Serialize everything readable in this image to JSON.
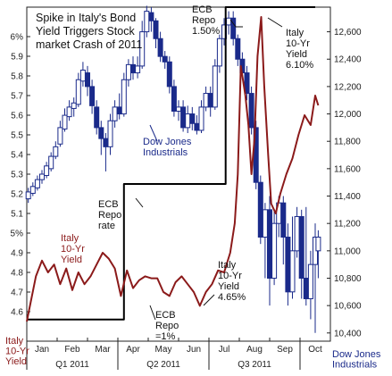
{
  "chart_data": {
    "type": "line",
    "title": "Spike in Italy's Bond Yield Triggers Stock market Crash of 2011",
    "left_axis": {
      "label": "Italy 10-Yr Yield",
      "ylim": [
        4.45,
        6.15
      ],
      "ticks": [
        "4.6",
        "4.7",
        "4.8",
        "4.9",
        "5%",
        "5.1",
        "5.2",
        "5.3",
        "5.4",
        "5.5",
        "5.6",
        "5.7",
        "5.8",
        "5.9",
        "6%"
      ]
    },
    "right_axis": {
      "label": "Dow Jones Industrials",
      "ylim": [
        10340,
        12780
      ],
      "ticks": [
        "10,400",
        "10,600",
        "10,800",
        "11,000",
        "11,200",
        "11,400",
        "11,600",
        "11,800",
        "12,000",
        "12,200",
        "12,400",
        "12,600"
      ]
    },
    "x_axis": {
      "months": [
        "Jan",
        "Feb",
        "Mar",
        "Apr",
        "May",
        "Jun",
        "Jul",
        "Aug",
        "Sep",
        "Oct"
      ],
      "quarters": [
        "Q1 2011",
        "Q2 2011",
        "Q3 2011"
      ]
    },
    "series": [
      {
        "name": "Italy 10-Yr Yield",
        "color": "#8b1a1a",
        "points": [
          [
            0.0,
            4.55
          ],
          [
            0.3,
            4.78
          ],
          [
            0.5,
            4.86
          ],
          [
            0.7,
            4.8
          ],
          [
            0.9,
            4.84
          ],
          [
            1.1,
            4.74
          ],
          [
            1.3,
            4.82
          ],
          [
            1.5,
            4.71
          ],
          [
            1.7,
            4.8
          ],
          [
            1.9,
            4.74
          ],
          [
            2.1,
            4.78
          ],
          [
            2.3,
            4.84
          ],
          [
            2.5,
            4.9
          ],
          [
            2.7,
            4.87
          ],
          [
            2.9,
            4.82
          ],
          [
            3.1,
            4.68
          ],
          [
            3.3,
            4.81
          ],
          [
            3.5,
            4.72
          ],
          [
            3.7,
            4.76
          ],
          [
            3.9,
            4.78
          ],
          [
            4.1,
            4.77
          ],
          [
            4.3,
            4.77
          ],
          [
            4.5,
            4.7
          ],
          [
            4.7,
            4.68
          ],
          [
            4.9,
            4.75
          ],
          [
            5.1,
            4.78
          ],
          [
            5.3,
            4.74
          ],
          [
            5.5,
            4.7
          ],
          [
            5.7,
            4.63
          ],
          [
            5.9,
            4.7
          ],
          [
            6.1,
            4.74
          ],
          [
            6.3,
            4.81
          ],
          [
            6.5,
            4.8
          ],
          [
            6.7,
            4.9
          ],
          [
            6.85,
            5.05
          ],
          [
            6.95,
            5.3
          ],
          [
            7.05,
            5.85
          ],
          [
            7.2,
            5.7
          ],
          [
            7.3,
            5.55
          ],
          [
            7.4,
            5.3
          ],
          [
            7.5,
            5.48
          ],
          [
            7.6,
            5.9
          ],
          [
            7.72,
            6.1
          ],
          [
            7.82,
            5.75
          ],
          [
            7.95,
            5.4
          ],
          [
            8.05,
            5.15
          ],
          [
            8.2,
            5.1
          ],
          [
            8.35,
            5.2
          ],
          [
            8.55,
            5.3
          ],
          [
            8.75,
            5.38
          ],
          [
            8.95,
            5.5
          ],
          [
            9.15,
            5.6
          ],
          [
            9.35,
            5.55
          ],
          [
            9.5,
            5.7
          ],
          [
            9.6,
            5.65
          ]
        ]
      },
      {
        "name": "ECB Repo rate",
        "color": "#000000",
        "points": [
          [
            0.0,
            4.56
          ],
          [
            3.2,
            4.56
          ],
          [
            3.2,
            5.25
          ],
          [
            6.55,
            5.25
          ],
          [
            6.55,
            6.15
          ],
          [
            9.5,
            6.15
          ]
        ]
      },
      {
        "name": "Dow Jones Industrials",
        "type": "candlestick",
        "color": "#1a2a8a",
        "candles": [
          [
            0.05,
            11380,
            11430,
            11350,
            11460
          ],
          [
            0.2,
            11420,
            11470,
            11400,
            11500
          ],
          [
            0.35,
            11460,
            11520,
            11440,
            11550
          ],
          [
            0.5,
            11520,
            11560,
            11490,
            11590
          ],
          [
            0.65,
            11550,
            11620,
            11530,
            11650
          ],
          [
            0.8,
            11600,
            11690,
            11580,
            11720
          ],
          [
            0.95,
            11690,
            11760,
            11670,
            11800
          ],
          [
            1.1,
            11780,
            11900,
            11760,
            11950
          ],
          [
            1.25,
            11890,
            11990,
            11870,
            12040
          ],
          [
            1.4,
            11980,
            12050,
            11950,
            12100
          ],
          [
            1.55,
            12040,
            12080,
            11980,
            12120
          ],
          [
            1.7,
            12070,
            12250,
            12050,
            12300
          ],
          [
            1.85,
            12240,
            12320,
            12200,
            12380
          ],
          [
            2.0,
            12300,
            12200,
            12130,
            12350
          ],
          [
            2.15,
            12200,
            12060,
            12000,
            12250
          ],
          [
            2.3,
            12050,
            11900,
            11850,
            12100
          ],
          [
            2.45,
            11900,
            11820,
            11700,
            11950
          ],
          [
            2.6,
            11820,
            11760,
            11580,
            11860
          ],
          [
            2.75,
            11760,
            11950,
            11700,
            12000
          ],
          [
            2.9,
            11950,
            12050,
            11900,
            12100
          ],
          [
            3.05,
            12050,
            12000,
            11960,
            12150
          ],
          [
            3.2,
            12000,
            12250,
            11980,
            12300
          ],
          [
            3.35,
            12250,
            12360,
            12200,
            12400
          ],
          [
            3.5,
            12360,
            12300,
            12250,
            12420
          ],
          [
            3.65,
            12300,
            12350,
            12260,
            12420
          ],
          [
            3.8,
            12350,
            12600,
            12330,
            12680
          ],
          [
            3.95,
            12600,
            12750,
            12560,
            12790
          ],
          [
            4.1,
            12740,
            12680,
            12600,
            12780
          ],
          [
            4.25,
            12680,
            12550,
            12480,
            12700
          ],
          [
            4.4,
            12550,
            12420,
            12380,
            12600
          ],
          [
            4.55,
            12420,
            12380,
            12330,
            12460
          ],
          [
            4.7,
            12380,
            12200,
            12150,
            12420
          ],
          [
            4.85,
            12200,
            12020,
            11980,
            12250
          ],
          [
            5.0,
            12020,
            12050,
            11950,
            12100
          ],
          [
            5.15,
            12050,
            11900,
            11870,
            12100
          ],
          [
            5.3,
            11900,
            12000,
            11860,
            12060
          ],
          [
            5.45,
            12000,
            11930,
            11880,
            12050
          ],
          [
            5.6,
            11930,
            11880,
            11850,
            11990
          ],
          [
            5.75,
            11880,
            12050,
            11860,
            12100
          ],
          [
            5.9,
            12050,
            12150,
            12020,
            12200
          ],
          [
            6.05,
            12150,
            12050,
            11980,
            12200
          ],
          [
            6.2,
            12050,
            12350,
            12030,
            12400
          ],
          [
            6.35,
            12350,
            12550,
            12300,
            12580
          ],
          [
            6.5,
            12550,
            12650,
            12500,
            12700
          ],
          [
            6.65,
            12650,
            12700,
            12580,
            12750
          ],
          [
            6.8,
            12700,
            12550,
            12500,
            12750
          ],
          [
            6.95,
            12550,
            12400,
            12350,
            12580
          ],
          [
            7.1,
            12400,
            12300,
            12250,
            12450
          ],
          [
            7.25,
            12300,
            12150,
            12100,
            12350
          ],
          [
            7.4,
            12150,
            11900,
            11850,
            12200
          ],
          [
            7.55,
            11900,
            11500,
            11450,
            11950
          ],
          [
            7.7,
            11500,
            11100,
            11050,
            11550
          ],
          [
            7.85,
            11100,
            11300,
            10800,
            11350
          ],
          [
            8.0,
            11300,
            10800,
            10600,
            11400
          ],
          [
            8.15,
            10800,
            11200,
            10750,
            11300
          ],
          [
            8.3,
            11200,
            11350,
            11100,
            11400
          ],
          [
            8.45,
            11350,
            11100,
            10900,
            11400
          ],
          [
            8.6,
            11100,
            10700,
            10600,
            11200
          ],
          [
            8.75,
            10700,
            11000,
            10650,
            11250
          ],
          [
            8.9,
            11000,
            11250,
            10950,
            11320
          ],
          [
            9.05,
            11250,
            10800,
            10650,
            11300
          ],
          [
            9.2,
            10800,
            10650,
            10600,
            11320
          ],
          [
            9.35,
            10650,
            10900,
            10500,
            11000
          ],
          [
            9.5,
            10900,
            11100,
            10400,
            11200
          ],
          [
            9.6,
            11000,
            11100,
            10800,
            11150
          ]
        ]
      }
    ],
    "annotations": [
      {
        "text": "ECB Repo 1.50%",
        "lines": [
          "ECB",
          "Repo",
          "1.50%"
        ],
        "color": "black"
      },
      {
        "text": "Italy 10-Yr Yield 6.10%",
        "lines": [
          "Italy",
          "10-Yr",
          "Yield",
          "6.10%"
        ],
        "color": "black"
      },
      {
        "text": "Dow Jones Industrials",
        "lines": [
          "Dow Jones",
          "Industrials"
        ],
        "color": "blue"
      },
      {
        "text": "ECB Repo rate",
        "lines": [
          "ECB",
          "Repo",
          "rate"
        ],
        "color": "black"
      },
      {
        "text": "Italy 10-Yr Yield",
        "lines": [
          "Italy",
          "10-Yr",
          "Yield"
        ],
        "color": "red"
      },
      {
        "text": "Italy 10-Yr Yield 4.65%",
        "lines": [
          "Italy",
          "10-Yr",
          "Yield",
          "4.65%"
        ],
        "color": "black"
      },
      {
        "text": "ECB Repo =1%",
        "lines": [
          "ECB",
          "Repo",
          "=1%"
        ],
        "color": "black"
      }
    ],
    "axis_titles": {
      "left": [
        "Italy",
        "10-Yr",
        "Yield"
      ],
      "right": [
        "Dow Jones",
        "Industrials"
      ]
    }
  }
}
